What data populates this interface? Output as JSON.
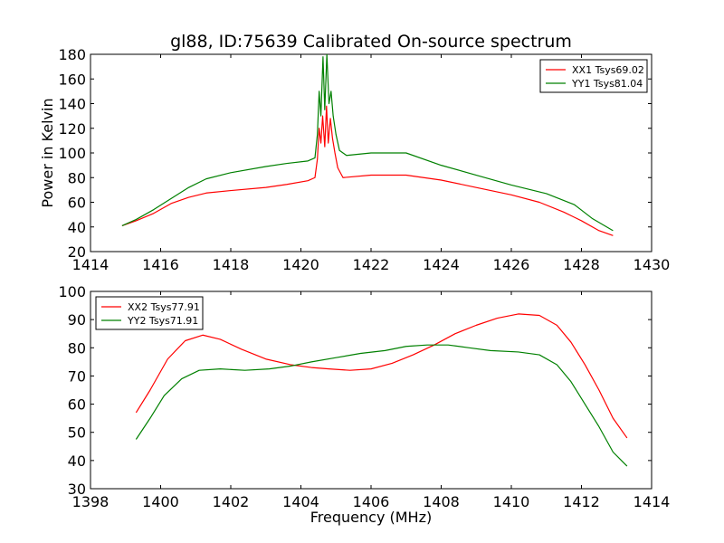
{
  "figure": {
    "title": "gl88, ID:75639 Calibrated On-source spectrum",
    "xlabel": "Frequency (MHz)"
  },
  "chart_data": [
    {
      "type": "line",
      "title": "gl88, ID:75639 Calibrated On-source spectrum",
      "xlabel": "",
      "ylabel": "Power in Kelvin",
      "xlim": [
        1414,
        1430
      ],
      "ylim": [
        20,
        180
      ],
      "xticks": [
        1414,
        1416,
        1418,
        1420,
        1422,
        1424,
        1426,
        1428,
        1430
      ],
      "yticks": [
        20,
        40,
        60,
        80,
        100,
        120,
        140,
        160,
        180
      ],
      "legend_position": "top-right",
      "series": [
        {
          "name": "XX1 Tsys69.02",
          "color": "#ff0000",
          "points": [
            [
              1414.9,
              41
            ],
            [
              1415.3,
              45
            ],
            [
              1415.8,
              51
            ],
            [
              1416.3,
              59
            ],
            [
              1416.8,
              64
            ],
            [
              1417.3,
              67.5
            ],
            [
              1418,
              69.5
            ],
            [
              1419,
              72
            ],
            [
              1419.6,
              74.5
            ],
            [
              1420.2,
              77.5
            ],
            [
              1420.4,
              80
            ],
            [
              1420.47,
              95
            ],
            [
              1420.52,
              120
            ],
            [
              1420.57,
              108
            ],
            [
              1420.62,
              130
            ],
            [
              1420.68,
              105
            ],
            [
              1420.73,
              138
            ],
            [
              1420.78,
              108
            ],
            [
              1420.84,
              128
            ],
            [
              1420.9,
              112
            ],
            [
              1420.97,
              100
            ],
            [
              1421.05,
              88
            ],
            [
              1421.2,
              80
            ],
            [
              1422,
              82
            ],
            [
              1423,
              82
            ],
            [
              1424,
              78
            ],
            [
              1425,
              72
            ],
            [
              1426,
              66
            ],
            [
              1426.8,
              60
            ],
            [
              1427.5,
              52
            ],
            [
              1428,
              45
            ],
            [
              1428.5,
              37
            ],
            [
              1428.9,
              33
            ]
          ]
        },
        {
          "name": "YY1 Tsys81.04",
          "color": "#008000",
          "points": [
            [
              1414.9,
              41
            ],
            [
              1415.3,
              46
            ],
            [
              1415.8,
              54
            ],
            [
              1416.3,
              63
            ],
            [
              1416.8,
              72
            ],
            [
              1417.3,
              79
            ],
            [
              1418,
              84
            ],
            [
              1419,
              89
            ],
            [
              1419.6,
              91.5
            ],
            [
              1420.2,
              93.5
            ],
            [
              1420.4,
              96
            ],
            [
              1420.47,
              115
            ],
            [
              1420.52,
              150
            ],
            [
              1420.57,
              130
            ],
            [
              1420.63,
              178
            ],
            [
              1420.68,
              135
            ],
            [
              1420.74,
              180
            ],
            [
              1420.8,
              140
            ],
            [
              1420.86,
              150
            ],
            [
              1420.92,
              130
            ],
            [
              1421,
              115
            ],
            [
              1421.1,
              102
            ],
            [
              1421.3,
              98
            ],
            [
              1422,
              100
            ],
            [
              1423,
              100
            ],
            [
              1424,
              90
            ],
            [
              1425,
              82
            ],
            [
              1426,
              74
            ],
            [
              1427,
              67
            ],
            [
              1427.8,
              58
            ],
            [
              1428.3,
              47
            ],
            [
              1428.9,
              37
            ]
          ]
        }
      ]
    },
    {
      "type": "line",
      "title": "",
      "xlabel": "Frequency (MHz)",
      "ylabel": "",
      "xlim": [
        1398,
        1414
      ],
      "ylim": [
        30,
        100
      ],
      "xticks": [
        1398,
        1400,
        1402,
        1404,
        1406,
        1408,
        1410,
        1412,
        1414
      ],
      "yticks": [
        30,
        40,
        50,
        60,
        70,
        80,
        90,
        100
      ],
      "legend_position": "top-left",
      "series": [
        {
          "name": "XX2 Tsys77.91",
          "color": "#ff0000",
          "points": [
            [
              1399.3,
              57
            ],
            [
              1399.7,
              65
            ],
            [
              1400.2,
              76
            ],
            [
              1400.7,
              82.5
            ],
            [
              1401.2,
              84.5
            ],
            [
              1401.7,
              83
            ],
            [
              1402.3,
              79.5
            ],
            [
              1403,
              76
            ],
            [
              1403.7,
              74
            ],
            [
              1404.3,
              73
            ],
            [
              1404.8,
              72.5
            ],
            [
              1405.4,
              72
            ],
            [
              1406,
              72.5
            ],
            [
              1406.6,
              74.5
            ],
            [
              1407.2,
              77.5
            ],
            [
              1407.8,
              81
            ],
            [
              1408.4,
              85
            ],
            [
              1409,
              88
            ],
            [
              1409.6,
              90.5
            ],
            [
              1410.2,
              92
            ],
            [
              1410.8,
              91.5
            ],
            [
              1411.3,
              88
            ],
            [
              1411.7,
              82
            ],
            [
              1412.1,
              74
            ],
            [
              1412.5,
              65
            ],
            [
              1412.9,
              55
            ],
            [
              1413.3,
              48
            ]
          ]
        },
        {
          "name": "YY2 Tsys71.91",
          "color": "#008000",
          "points": [
            [
              1399.3,
              47.5
            ],
            [
              1399.7,
              55
            ],
            [
              1400.1,
              63
            ],
            [
              1400.6,
              69
            ],
            [
              1401.1,
              72
            ],
            [
              1401.7,
              72.5
            ],
            [
              1402.4,
              72
            ],
            [
              1403.1,
              72.5
            ],
            [
              1403.7,
              73.5
            ],
            [
              1404.3,
              75
            ],
            [
              1405,
              76.5
            ],
            [
              1405.7,
              78
            ],
            [
              1406.4,
              79
            ],
            [
              1407,
              80.5
            ],
            [
              1407.6,
              81
            ],
            [
              1408.2,
              81
            ],
            [
              1408.8,
              80
            ],
            [
              1409.4,
              79
            ],
            [
              1410.2,
              78.5
            ],
            [
              1410.8,
              77.5
            ],
            [
              1411.3,
              74
            ],
            [
              1411.7,
              68
            ],
            [
              1412.1,
              60
            ],
            [
              1412.5,
              52
            ],
            [
              1412.9,
              43
            ],
            [
              1413.3,
              38
            ]
          ]
        }
      ]
    }
  ]
}
